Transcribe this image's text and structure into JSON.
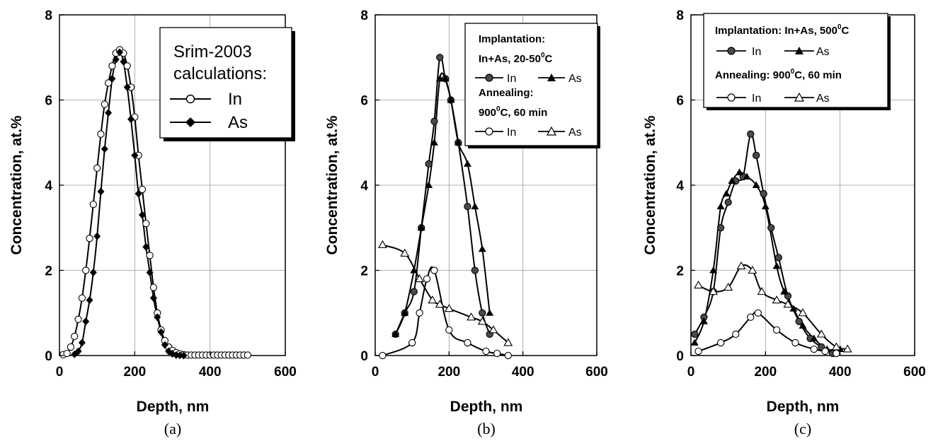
{
  "chart_data": [
    {
      "type": "scatter",
      "caption": "(a)",
      "xlabel": "Depth, nm",
      "ylabel": "Concentration, at.%",
      "xlim": [
        0,
        600
      ],
      "ylim": [
        0,
        8
      ],
      "xticks": [
        0,
        200,
        400,
        600
      ],
      "yticks": [
        0,
        2,
        4,
        6,
        8
      ],
      "grid": true,
      "legend": {
        "position": "top-right",
        "lines": [
          "Srim-2003",
          "calculations:"
        ],
        "entries": [
          "In",
          "As"
        ]
      },
      "series": [
        {
          "name": "In",
          "marker": "open-circle",
          "x": [
            10,
            20,
            30,
            40,
            50,
            60,
            70,
            80,
            90,
            100,
            110,
            120,
            130,
            140,
            150,
            160,
            170,
            180,
            190,
            200,
            210,
            220,
            230,
            240,
            250,
            260,
            270,
            280,
            290,
            300,
            310,
            320,
            330,
            340,
            350,
            360,
            370,
            380,
            390,
            400,
            410,
            420,
            430,
            440,
            450,
            460,
            470,
            480,
            490,
            500
          ],
          "y": [
            0.02,
            0.05,
            0.2,
            0.45,
            0.85,
            1.35,
            2.0,
            2.75,
            3.55,
            4.4,
            5.2,
            5.9,
            6.4,
            6.8,
            7.1,
            7.18,
            7.1,
            6.8,
            6.3,
            5.6,
            4.7,
            3.9,
            3.1,
            2.35,
            1.6,
            1.0,
            0.6,
            0.35,
            0.2,
            0.12,
            0.07,
            0.04,
            0.02,
            0.01,
            0.01,
            0.01,
            0.01,
            0.01,
            0.01,
            0.01,
            0.01,
            0.01,
            0.01,
            0.01,
            0.01,
            0.01,
            0.01,
            0.01,
            0.01,
            0.01
          ]
        },
        {
          "name": "As",
          "marker": "filled-diamond",
          "x": [
            40,
            50,
            60,
            70,
            80,
            90,
            100,
            110,
            120,
            130,
            140,
            150,
            160,
            170,
            180,
            190,
            200,
            210,
            220,
            230,
            240,
            250,
            260,
            270,
            280,
            290,
            300,
            310,
            320,
            330
          ],
          "y": [
            0.03,
            0.1,
            0.3,
            0.8,
            1.3,
            1.95,
            2.8,
            3.85,
            4.85,
            5.7,
            6.5,
            6.95,
            7.12,
            6.9,
            6.3,
            5.55,
            4.7,
            3.8,
            3.3,
            2.55,
            1.95,
            1.35,
            0.9,
            0.55,
            0.25,
            0.1,
            0.04,
            0.01,
            0.005,
            0.0
          ]
        }
      ]
    },
    {
      "type": "scatter",
      "caption": "(b)",
      "xlabel": "Depth, nm",
      "ylabel": "Concentration, at.%",
      "xlim": [
        0,
        600
      ],
      "ylim": [
        0,
        8
      ],
      "xticks": [
        0,
        200,
        400,
        600
      ],
      "yticks": [
        0,
        2,
        4,
        6,
        8
      ],
      "grid": true,
      "legend": {
        "position": "top-right",
        "implantation": "Implantation:",
        "implant_cond": "In+As, 20-50",
        "implant_sup": "0",
        "implant_unit": "C",
        "annealing": "Annealing:",
        "anneal_temp": "900",
        "anneal_sup": "0",
        "anneal_rest": "C, 60 min",
        "in_label": "In",
        "as_label": "As"
      },
      "series": [
        {
          "name": "In",
          "group": "implantation",
          "marker": "filled-circle",
          "x": [
            55,
            80,
            105,
            125,
            145,
            160,
            175,
            190,
            205,
            225,
            250,
            270,
            290,
            310
          ],
          "y": [
            0.5,
            1.0,
            1.5,
            3.0,
            4.5,
            5.5,
            7.0,
            6.5,
            6.0,
            5.0,
            3.5,
            2.0,
            1.0,
            0.5
          ]
        },
        {
          "name": "As",
          "group": "implantation",
          "marker": "filled-triangle",
          "x": [
            55,
            80,
            105,
            125,
            145,
            160,
            175,
            190,
            205,
            225,
            250,
            270,
            290,
            310
          ],
          "y": [
            0.5,
            1.0,
            2.0,
            3.0,
            4.0,
            5.0,
            6.5,
            6.5,
            6.0,
            5.0,
            4.5,
            3.5,
            2.5,
            1.0
          ]
        },
        {
          "name": "In",
          "group": "annealing",
          "marker": "open-circle",
          "x": [
            20,
            100,
            120,
            140,
            160,
            200,
            250,
            300,
            330,
            360
          ],
          "y": [
            0.0,
            0.3,
            1.0,
            1.8,
            2.0,
            0.6,
            0.3,
            0.1,
            0.05,
            0.0
          ]
        },
        {
          "name": "As",
          "group": "annealing",
          "marker": "open-triangle",
          "x": [
            20,
            80,
            120,
            155,
            175,
            200,
            260,
            290,
            320,
            360
          ],
          "y": [
            2.6,
            2.4,
            1.8,
            1.3,
            1.2,
            1.1,
            0.9,
            0.8,
            0.6,
            0.3
          ]
        }
      ]
    },
    {
      "type": "scatter",
      "caption": "(c)",
      "xlabel": "Depth, nm",
      "ylabel": "Concentration, at.%",
      "xlim": [
        0,
        600
      ],
      "ylim": [
        0,
        8
      ],
      "xticks": [
        0,
        200,
        400,
        600
      ],
      "yticks": [
        0,
        2,
        4,
        6,
        8
      ],
      "grid": true,
      "legend": {
        "position": "top-right",
        "implant_line": "Implantation: In+As, 500",
        "implant_sup": "0",
        "implant_unit": "C",
        "anneal_line": "Annealing: 900",
        "anneal_sup": "0",
        "anneal_rest": "C, 60 min",
        "in_label": "In",
        "as_label": "As"
      },
      "series": [
        {
          "name": "In",
          "group": "implantation",
          "marker": "filled-circle",
          "x": [
            10,
            35,
            60,
            80,
            100,
            120,
            140,
            160,
            175,
            195,
            215,
            235,
            260,
            290,
            320,
            350,
            380
          ],
          "y": [
            0.5,
            0.9,
            1.5,
            3.0,
            3.6,
            4.1,
            4.2,
            5.2,
            4.7,
            3.8,
            3.0,
            2.3,
            1.4,
            0.8,
            0.4,
            0.2,
            0.05
          ]
        },
        {
          "name": "As",
          "group": "implantation",
          "marker": "filled-triangle",
          "x": [
            10,
            35,
            60,
            80,
            95,
            110,
            130,
            150,
            175,
            200,
            230,
            250,
            275,
            300,
            330,
            365,
            400
          ],
          "y": [
            0.3,
            0.8,
            2.0,
            3.5,
            3.8,
            4.1,
            4.3,
            4.2,
            4.0,
            3.5,
            2.1,
            1.5,
            1.1,
            0.7,
            0.4,
            0.15,
            0.15
          ]
        },
        {
          "name": "In",
          "group": "annealing",
          "marker": "open-circle",
          "x": [
            20,
            80,
            120,
            160,
            180,
            230,
            280,
            330,
            360,
            390
          ],
          "y": [
            0.1,
            0.3,
            0.5,
            0.9,
            1.0,
            0.6,
            0.3,
            0.15,
            0.1,
            0.05
          ]
        },
        {
          "name": "As",
          "group": "annealing",
          "marker": "open-triangle",
          "x": [
            20,
            60,
            100,
            135,
            165,
            190,
            230,
            260,
            300,
            350,
            390,
            420
          ],
          "y": [
            1.65,
            1.5,
            1.6,
            2.1,
            2.0,
            1.5,
            1.3,
            1.2,
            1.0,
            0.5,
            0.2,
            0.15
          ]
        }
      ]
    }
  ]
}
